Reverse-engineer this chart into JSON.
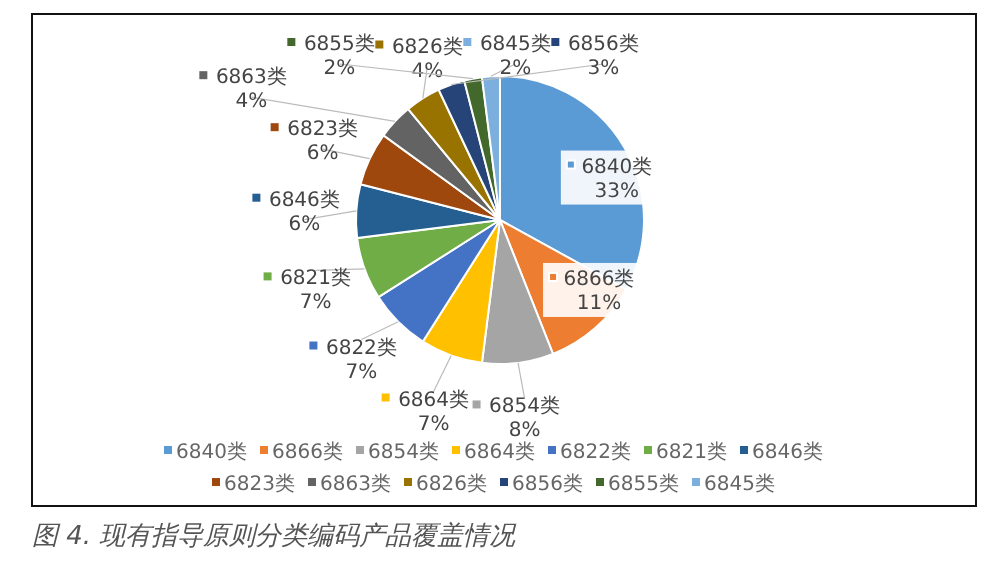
{
  "chart_data": {
    "type": "pie",
    "categories": [
      "6840类",
      "6866类",
      "6854类",
      "6864类",
      "6822类",
      "6821类",
      "6846类",
      "6823类",
      "6863类",
      "6826类",
      "6856类",
      "6855类",
      "6845类"
    ],
    "values": [
      33,
      11,
      8,
      7,
      7,
      7,
      6,
      6,
      4,
      4,
      3,
      2,
      2
    ],
    "colors": [
      "#5b9bd5",
      "#ed7d31",
      "#a5a5a5",
      "#ffc000",
      "#4472c4",
      "#70ad47",
      "#255e91",
      "#9e480e",
      "#636363",
      "#997300",
      "#264478",
      "#43682b",
      "#7cafdd"
    ],
    "value_labels": [
      "33%",
      "11%",
      "8%",
      "7%",
      "7%",
      "7%",
      "6%",
      "6%",
      "4%",
      "4%",
      "3%",
      "2%",
      "2%"
    ],
    "legend": "bottom",
    "annotations": [
      "图 4. 现有指导原则分类编码产品覆盖情况"
    ]
  }
}
